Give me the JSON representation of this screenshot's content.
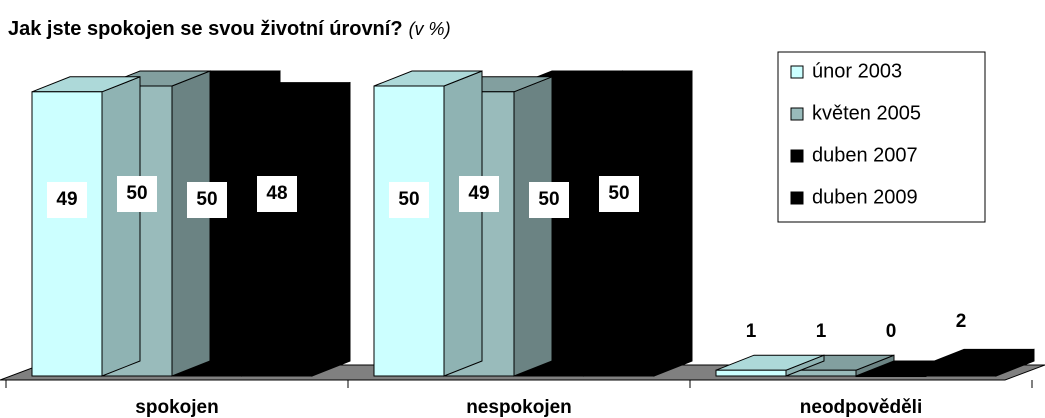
{
  "chart_data": {
    "type": "bar3d",
    "title": "Jak jste spokojen se svou životní úrovní?",
    "subtitle": "(v %)",
    "categories": [
      "spokojen",
      "nespokojen",
      "neodpověděli"
    ],
    "series": [
      {
        "name": "únor 2003",
        "color": "#ccffff",
        "values": [
          49,
          50,
          1
        ]
      },
      {
        "name": "květen 2005",
        "color": "#99bbbb",
        "values": [
          50,
          49,
          1
        ]
      },
      {
        "name": "duben 2007",
        "color": "#000000",
        "values": [
          50,
          50,
          0
        ]
      },
      {
        "name": "duben 2009",
        "color": "#000000",
        "values": [
          48,
          50,
          2
        ]
      }
    ],
    "legend": "upper right"
  }
}
